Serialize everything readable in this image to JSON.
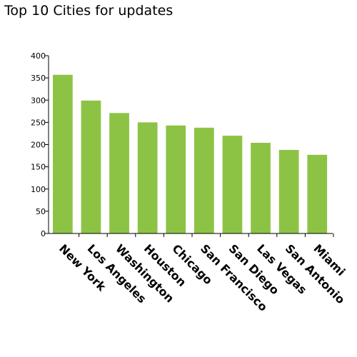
{
  "chart_data": {
    "type": "bar",
    "title": "Top 10 Cities for updates",
    "xlabel": "",
    "ylabel": "",
    "categories": [
      "New York",
      "Los Angeles",
      "Washington",
      "Houston",
      "Chicago",
      "San Francisco",
      "San Diego",
      "Las Vegas",
      "San Antonio",
      "Miami"
    ],
    "values": [
      357,
      299,
      271,
      250,
      243,
      238,
      220,
      204,
      188,
      177
    ],
    "ylim": [
      0,
      400
    ],
    "yticks": [
      0,
      50,
      100,
      150,
      200,
      250,
      300,
      350,
      400
    ],
    "grid": false,
    "legend": "none",
    "bar_color": "#8dc344"
  }
}
